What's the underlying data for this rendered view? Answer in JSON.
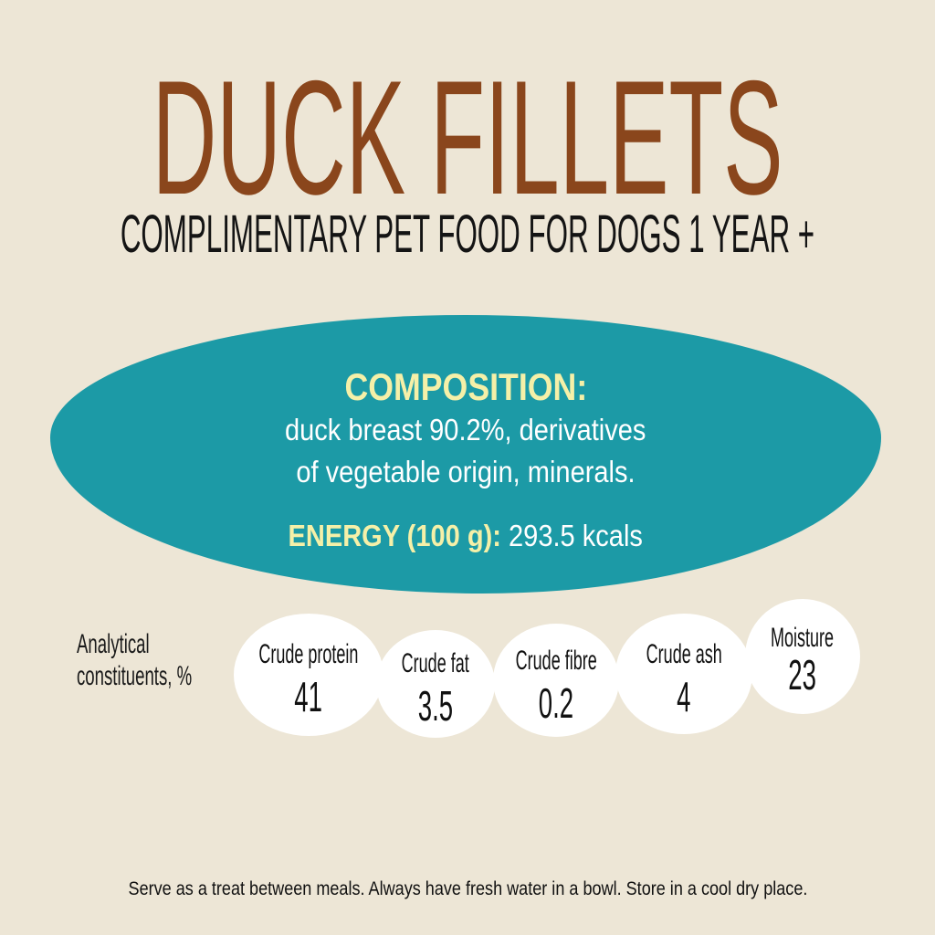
{
  "title": "DUCK FILLETS",
  "subtitle": "COMPLIMENTARY PET FOOD FOR DOGS 1 YEAR +",
  "composition": {
    "heading": "COMPOSITION:",
    "line1": "duck breast 90.2%, derivatives",
    "line2": "of vegetable origin, minerals.",
    "energy_label": "ENERGY (100 g):",
    "energy_value": "293.5 kcals"
  },
  "analytical": {
    "label_line1": "Analytical",
    "label_line2": "constituents, %",
    "items": [
      {
        "label": "Crude protein",
        "value": "41"
      },
      {
        "label": "Crude fat",
        "value": "3.5"
      },
      {
        "label": "Crude fibre",
        "value": "0.2"
      },
      {
        "label": "Crude ash",
        "value": "4"
      },
      {
        "label": "Moisture",
        "value": "23"
      }
    ]
  },
  "footer": "Serve as a treat between meals. Always have fresh water in a bowl. Store in a cool dry place.",
  "colors": {
    "background": "#ede6d6",
    "title": "#8a461c",
    "panel": "#1c9aa6",
    "highlight": "#f5f0a8"
  }
}
